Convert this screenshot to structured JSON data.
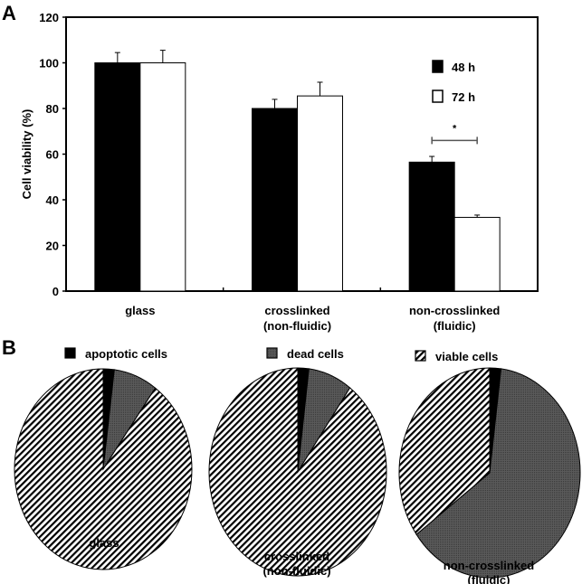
{
  "chart_data": [
    {
      "panel": "A",
      "type": "bar",
      "ylabel": "Cell viability (%)",
      "xlabel": "",
      "ylim": [
        0,
        120
      ],
      "yticks": [
        0,
        20,
        40,
        60,
        80,
        100,
        120
      ],
      "categories": [
        [
          "glass"
        ],
        [
          "crosslinked",
          "(non-fluidic)"
        ],
        [
          "non-crosslinked",
          "(fluidic)"
        ]
      ],
      "series": [
        {
          "name": "48 h",
          "color": "#000000",
          "values": [
            100,
            80,
            56.5
          ],
          "errors": [
            4.5,
            4,
            2.5
          ]
        },
        {
          "name": "72 h",
          "color": "#ffffff",
          "values": [
            100,
            85.5,
            32.3
          ],
          "errors": [
            5.5,
            6,
            1
          ]
        }
      ],
      "annotation": {
        "text": "*",
        "between": "non-crosslinked 48 h vs 72 h"
      },
      "legend_position": "top-right"
    },
    {
      "panel": "B",
      "type": "pie",
      "legend": [
        {
          "name": "apoptotic cells",
          "fill": "black"
        },
        {
          "name": "dead cells",
          "fill": "dark-gray"
        },
        {
          "name": "viable cells",
          "fill": "hatched"
        }
      ],
      "pies": [
        {
          "label": [
            "glass"
          ],
          "values": [
            2,
            8,
            90
          ]
        },
        {
          "label": [
            "crosslinked",
            "(non-fluidic)"
          ],
          "values": [
            2,
            8,
            90
          ]
        },
        {
          "label": [
            "non-crosslinked",
            "(fluidic)"
          ],
          "values": [
            2,
            63,
            35
          ]
        }
      ]
    }
  ]
}
